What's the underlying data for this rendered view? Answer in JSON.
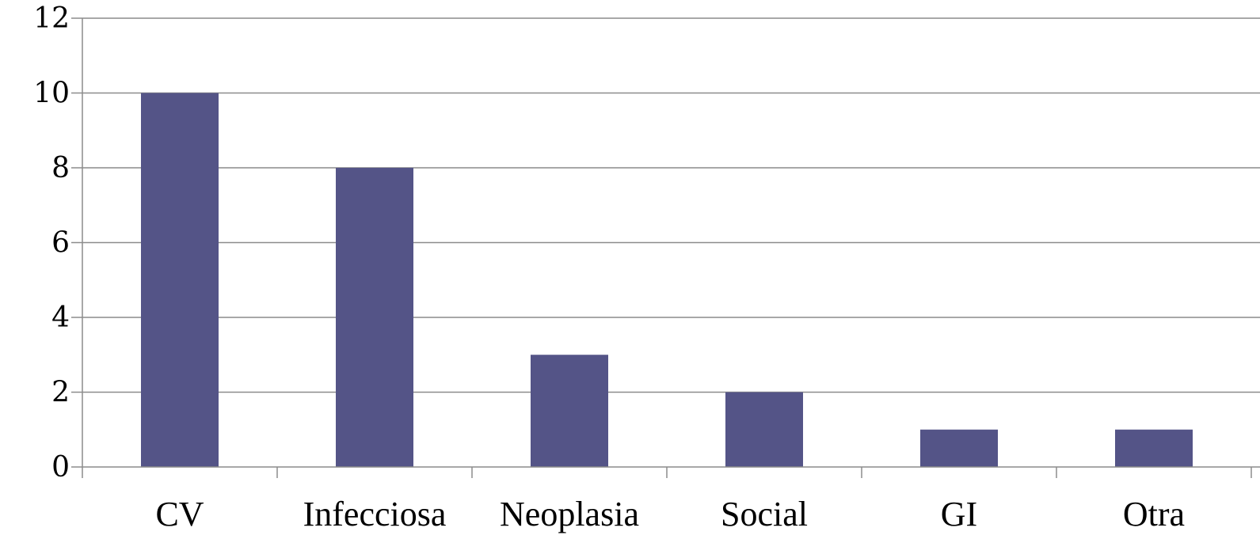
{
  "chart_data": {
    "type": "bar",
    "categories": [
      "CV",
      "Infecciosa",
      "Neoplasia",
      "Social",
      "GI",
      "Otra"
    ],
    "values": [
      10,
      8,
      3,
      2,
      1,
      1
    ],
    "title": "",
    "xlabel": "",
    "ylabel": "",
    "ylim": [
      0,
      12
    ],
    "yticks": [
      0,
      2,
      4,
      6,
      8,
      10,
      12
    ],
    "grid": true,
    "legend": "none",
    "bar_color": "#545487",
    "grid_color": "#8c8c8c"
  }
}
